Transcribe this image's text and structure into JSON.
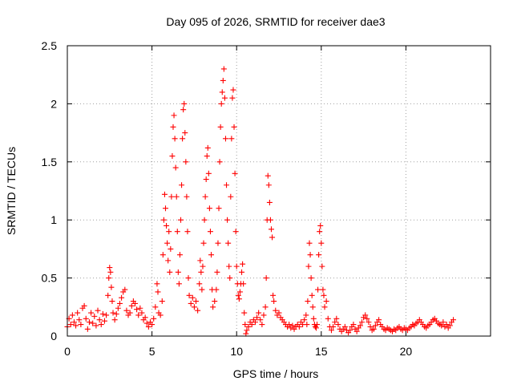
{
  "chart_data": {
    "type": "scatter",
    "title": "Day 095 of 2026, SRMTID for receiver dae3",
    "xlabel": "GPS time / hours",
    "ylabel": "SRMTID / TECUs",
    "xlim": [
      0,
      25
    ],
    "ylim": [
      0,
      2.5
    ],
    "xticks": [
      0,
      5,
      10,
      15,
      20
    ],
    "xtick_labels": [
      "0",
      "5",
      "10",
      "15",
      "20"
    ],
    "yticks": [
      0,
      0.5,
      1,
      1.5,
      2,
      2.5
    ],
    "ytick_labels": [
      "0",
      "0.5",
      "1",
      "1.5",
      "2",
      "2.5"
    ],
    "grid": true,
    "marker": "+",
    "series": [
      {
        "name": "SRMTID",
        "color": "#ff0000",
        "points": [
          [
            0.0,
            0.08
          ],
          [
            0.1,
            0.15
          ],
          [
            0.2,
            0.1
          ],
          [
            0.3,
            0.18
          ],
          [
            0.4,
            0.12
          ],
          [
            0.5,
            0.09
          ],
          [
            0.6,
            0.2
          ],
          [
            0.7,
            0.14
          ],
          [
            0.8,
            0.1
          ],
          [
            0.9,
            0.24
          ],
          [
            1.0,
            0.26
          ],
          [
            1.1,
            0.15
          ],
          [
            1.2,
            0.06
          ],
          [
            1.3,
            0.12
          ],
          [
            1.4,
            0.2
          ],
          [
            1.5,
            0.11
          ],
          [
            1.6,
            0.17
          ],
          [
            1.7,
            0.09
          ],
          [
            1.8,
            0.22
          ],
          [
            1.9,
            0.14
          ],
          [
            2.0,
            0.1
          ],
          [
            2.1,
            0.19
          ],
          [
            2.2,
            0.13
          ],
          [
            2.3,
            0.18
          ],
          [
            2.4,
            0.35
          ],
          [
            2.45,
            0.5
          ],
          [
            2.5,
            0.59
          ],
          [
            2.55,
            0.55
          ],
          [
            2.6,
            0.42
          ],
          [
            2.65,
            0.3
          ],
          [
            2.7,
            0.2
          ],
          [
            2.8,
            0.14
          ],
          [
            2.9,
            0.19
          ],
          [
            3.0,
            0.24
          ],
          [
            3.1,
            0.28
          ],
          [
            3.2,
            0.33
          ],
          [
            3.3,
            0.38
          ],
          [
            3.4,
            0.4
          ],
          [
            3.5,
            0.22
          ],
          [
            3.6,
            0.18
          ],
          [
            3.7,
            0.2
          ],
          [
            3.8,
            0.26
          ],
          [
            3.9,
            0.3
          ],
          [
            4.0,
            0.28
          ],
          [
            4.1,
            0.23
          ],
          [
            4.2,
            0.18
          ],
          [
            4.3,
            0.24
          ],
          [
            4.4,
            0.2
          ],
          [
            4.5,
            0.14
          ],
          [
            4.6,
            0.16
          ],
          [
            4.7,
            0.11
          ],
          [
            4.8,
            0.08
          ],
          [
            4.9,
            0.12
          ],
          [
            5.0,
            0.1
          ],
          [
            5.1,
            0.15
          ],
          [
            5.2,
            0.25
          ],
          [
            5.3,
            0.45
          ],
          [
            5.35,
            0.38
          ],
          [
            5.4,
            0.2
          ],
          [
            5.5,
            0.18
          ],
          [
            5.6,
            0.3
          ],
          [
            5.65,
            0.7
          ],
          [
            5.7,
            1.0
          ],
          [
            5.75,
            1.22
          ],
          [
            5.8,
            1.1
          ],
          [
            5.85,
            0.95
          ],
          [
            5.9,
            0.8
          ],
          [
            5.95,
            0.65
          ],
          [
            6.0,
            0.9
          ],
          [
            6.05,
            0.55
          ],
          [
            6.1,
            0.75
          ],
          [
            6.15,
            1.2
          ],
          [
            6.2,
            1.55
          ],
          [
            6.25,
            1.8
          ],
          [
            6.3,
            1.9
          ],
          [
            6.35,
            1.7
          ],
          [
            6.4,
            1.45
          ],
          [
            6.45,
            1.2
          ],
          [
            6.5,
            0.9
          ],
          [
            6.55,
            0.55
          ],
          [
            6.6,
            0.45
          ],
          [
            6.65,
            0.7
          ],
          [
            6.7,
            1.0
          ],
          [
            6.75,
            1.3
          ],
          [
            6.8,
            1.7
          ],
          [
            6.85,
            1.95
          ],
          [
            6.9,
            2.0
          ],
          [
            6.95,
            1.75
          ],
          [
            7.0,
            1.5
          ],
          [
            7.05,
            1.2
          ],
          [
            7.1,
            0.9
          ],
          [
            7.15,
            0.5
          ],
          [
            7.2,
            0.35
          ],
          [
            7.3,
            0.28
          ],
          [
            7.4,
            0.33
          ],
          [
            7.5,
            0.25
          ],
          [
            7.6,
            0.3
          ],
          [
            7.7,
            0.22
          ],
          [
            7.8,
            0.45
          ],
          [
            7.85,
            0.65
          ],
          [
            7.9,
            0.55
          ],
          [
            7.95,
            0.4
          ],
          [
            8.0,
            0.6
          ],
          [
            8.05,
            0.8
          ],
          [
            8.1,
            1.0
          ],
          [
            8.15,
            1.2
          ],
          [
            8.2,
            1.35
          ],
          [
            8.25,
            1.55
          ],
          [
            8.3,
            1.62
          ],
          [
            8.35,
            1.4
          ],
          [
            8.4,
            1.1
          ],
          [
            8.45,
            0.9
          ],
          [
            8.5,
            0.7
          ],
          [
            8.55,
            0.4
          ],
          [
            8.6,
            0.25
          ],
          [
            8.7,
            0.3
          ],
          [
            8.8,
            0.4
          ],
          [
            8.85,
            0.55
          ],
          [
            8.9,
            0.8
          ],
          [
            8.95,
            1.1
          ],
          [
            9.0,
            1.5
          ],
          [
            9.05,
            1.8
          ],
          [
            9.1,
            2.0
          ],
          [
            9.15,
            2.1
          ],
          [
            9.2,
            2.2
          ],
          [
            9.25,
            2.3
          ],
          [
            9.3,
            2.05
          ],
          [
            9.35,
            1.7
          ],
          [
            9.4,
            1.3
          ],
          [
            9.45,
            1.0
          ],
          [
            9.5,
            0.8
          ],
          [
            9.55,
            0.6
          ],
          [
            9.6,
            0.5
          ],
          [
            9.65,
            1.2
          ],
          [
            9.7,
            1.7
          ],
          [
            9.75,
            2.05
          ],
          [
            9.8,
            2.12
          ],
          [
            9.85,
            1.8
          ],
          [
            9.9,
            1.4
          ],
          [
            9.95,
            0.9
          ],
          [
            10.0,
            0.6
          ],
          [
            10.05,
            0.45
          ],
          [
            10.1,
            0.35
          ],
          [
            10.15,
            0.32
          ],
          [
            10.2,
            0.38
          ],
          [
            10.25,
            0.45
          ],
          [
            10.3,
            0.55
          ],
          [
            10.35,
            0.62
          ],
          [
            10.4,
            0.45
          ],
          [
            10.45,
            0.2
          ],
          [
            10.5,
            0.1
          ],
          [
            10.55,
            0.02
          ],
          [
            10.6,
            0.05
          ],
          [
            10.7,
            0.08
          ],
          [
            10.8,
            0.12
          ],
          [
            10.9,
            0.1
          ],
          [
            11.0,
            0.14
          ],
          [
            11.1,
            0.12
          ],
          [
            11.2,
            0.16
          ],
          [
            11.3,
            0.2
          ],
          [
            11.4,
            0.14
          ],
          [
            11.5,
            0.1
          ],
          [
            11.6,
            0.18
          ],
          [
            11.7,
            0.25
          ],
          [
            11.75,
            0.5
          ],
          [
            11.8,
            1.0
          ],
          [
            11.85,
            1.38
          ],
          [
            11.9,
            1.3
          ],
          [
            11.95,
            1.15
          ],
          [
            12.0,
            1.0
          ],
          [
            12.05,
            0.92
          ],
          [
            12.1,
            0.85
          ],
          [
            12.15,
            0.35
          ],
          [
            12.2,
            0.3
          ],
          [
            12.3,
            0.22
          ],
          [
            12.4,
            0.18
          ],
          [
            12.5,
            0.2
          ],
          [
            12.6,
            0.16
          ],
          [
            12.7,
            0.14
          ],
          [
            12.8,
            0.12
          ],
          [
            12.9,
            0.1
          ],
          [
            13.0,
            0.08
          ],
          [
            13.1,
            0.1
          ],
          [
            13.2,
            0.07
          ],
          [
            13.3,
            0.09
          ],
          [
            13.4,
            0.06
          ],
          [
            13.5,
            0.08
          ],
          [
            13.6,
            0.1
          ],
          [
            13.7,
            0.08
          ],
          [
            13.8,
            0.12
          ],
          [
            13.9,
            0.1
          ],
          [
            14.0,
            0.14
          ],
          [
            14.1,
            0.18
          ],
          [
            14.15,
            0.1
          ],
          [
            14.2,
            0.3
          ],
          [
            14.25,
            0.6
          ],
          [
            14.3,
            0.8
          ],
          [
            14.35,
            0.7
          ],
          [
            14.4,
            0.5
          ],
          [
            14.45,
            0.35
          ],
          [
            14.5,
            0.25
          ],
          [
            14.55,
            0.15
          ],
          [
            14.6,
            0.1
          ],
          [
            14.65,
            0.08
          ],
          [
            14.7,
            0.07
          ],
          [
            14.75,
            0.1
          ],
          [
            14.8,
            0.4
          ],
          [
            14.85,
            0.7
          ],
          [
            14.9,
            0.9
          ],
          [
            14.95,
            0.95
          ],
          [
            15.0,
            0.8
          ],
          [
            15.05,
            0.6
          ],
          [
            15.1,
            0.4
          ],
          [
            15.15,
            0.35
          ],
          [
            15.2,
            0.25
          ],
          [
            15.3,
            0.3
          ],
          [
            15.4,
            0.15
          ],
          [
            15.5,
            0.08
          ],
          [
            15.6,
            0.05
          ],
          [
            15.7,
            0.08
          ],
          [
            15.8,
            0.12
          ],
          [
            15.9,
            0.15
          ],
          [
            16.0,
            0.1
          ],
          [
            16.1,
            0.06
          ],
          [
            16.2,
            0.04
          ],
          [
            16.3,
            0.06
          ],
          [
            16.4,
            0.08
          ],
          [
            16.5,
            0.05
          ],
          [
            16.6,
            0.03
          ],
          [
            16.7,
            0.05
          ],
          [
            16.8,
            0.08
          ],
          [
            16.9,
            0.1
          ],
          [
            17.0,
            0.06
          ],
          [
            17.1,
            0.04
          ],
          [
            17.2,
            0.07
          ],
          [
            17.3,
            0.09
          ],
          [
            17.4,
            0.12
          ],
          [
            17.5,
            0.16
          ],
          [
            17.6,
            0.18
          ],
          [
            17.7,
            0.15
          ],
          [
            17.8,
            0.12
          ],
          [
            17.9,
            0.08
          ],
          [
            18.0,
            0.05
          ],
          [
            18.1,
            0.06
          ],
          [
            18.2,
            0.09
          ],
          [
            18.3,
            0.12
          ],
          [
            18.4,
            0.14
          ],
          [
            18.5,
            0.1
          ],
          [
            18.6,
            0.08
          ],
          [
            18.7,
            0.06
          ],
          [
            18.8,
            0.05
          ],
          [
            18.9,
            0.07
          ],
          [
            19.0,
            0.06
          ],
          [
            19.1,
            0.05
          ],
          [
            19.2,
            0.04
          ],
          [
            19.3,
            0.06
          ],
          [
            19.4,
            0.05
          ],
          [
            19.5,
            0.07
          ],
          [
            19.6,
            0.08
          ],
          [
            19.7,
            0.06
          ],
          [
            19.8,
            0.05
          ],
          [
            19.9,
            0.07
          ],
          [
            20.0,
            0.06
          ],
          [
            20.1,
            0.05
          ],
          [
            20.2,
            0.07
          ],
          [
            20.3,
            0.08
          ],
          [
            20.4,
            0.1
          ],
          [
            20.5,
            0.09
          ],
          [
            20.6,
            0.11
          ],
          [
            20.7,
            0.12
          ],
          [
            20.8,
            0.14
          ],
          [
            20.9,
            0.12
          ],
          [
            21.0,
            0.1
          ],
          [
            21.1,
            0.08
          ],
          [
            21.2,
            0.07
          ],
          [
            21.3,
            0.09
          ],
          [
            21.4,
            0.1
          ],
          [
            21.5,
            0.12
          ],
          [
            21.6,
            0.14
          ],
          [
            21.7,
            0.15
          ],
          [
            21.8,
            0.13
          ],
          [
            21.9,
            0.11
          ],
          [
            22.0,
            0.1
          ],
          [
            22.1,
            0.09
          ],
          [
            22.2,
            0.12
          ],
          [
            22.3,
            0.08
          ],
          [
            22.4,
            0.1
          ],
          [
            22.5,
            0.07
          ],
          [
            22.6,
            0.09
          ],
          [
            22.7,
            0.12
          ],
          [
            22.8,
            0.14
          ]
        ]
      }
    ]
  }
}
